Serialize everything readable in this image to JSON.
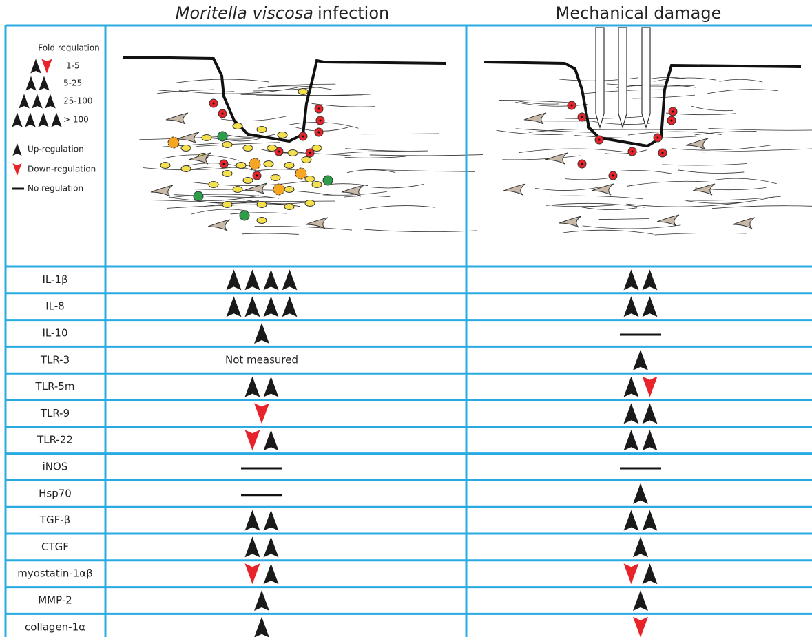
{
  "header": {
    "columns": [
      {
        "italic": "Moritella viscosa",
        "text": "infection"
      },
      {
        "text": "Mechanical damage"
      }
    ]
  },
  "legend": {
    "title": "Fold regulation",
    "levels": [
      "1-5",
      "5-25",
      "25-100",
      "> 100"
    ],
    "up": "Up-regulation",
    "down": "Down-regulation",
    "none": "No regulation"
  },
  "table": {
    "rows": [
      [
        "IL-1β"
      ],
      [
        "IL-8"
      ],
      [
        "IL-10"
      ],
      [
        "TLR-3",
        "Not measured"
      ],
      [
        "TLR-5m"
      ],
      [
        "TLR-9"
      ],
      [
        "TLR-22"
      ],
      [
        "iNOS"
      ],
      [
        "Hsp70"
      ],
      [
        "TGF-β"
      ],
      [
        "CTGF"
      ],
      [
        "myostatin-1αβ"
      ],
      [
        "MMP-2"
      ],
      [
        "collagen-1α"
      ]
    ]
  }
}
